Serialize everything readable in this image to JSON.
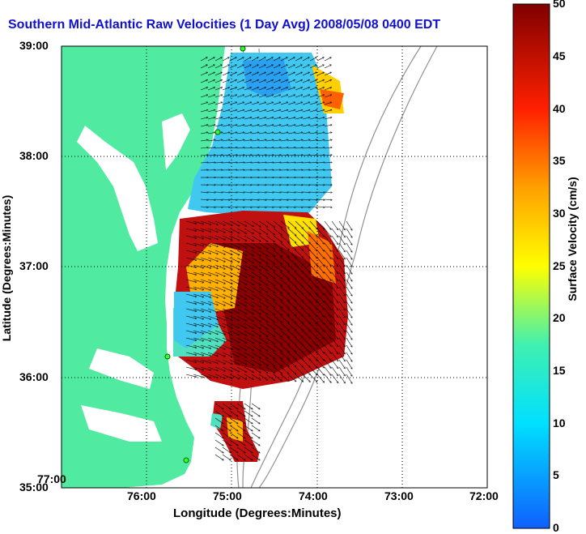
{
  "title": "Southern Mid-Atlantic Raw Velocities (1 Day Avg) 2008/05/08 0400 EDT",
  "xlabel": "Longitude (Degrees:Minutes)",
  "ylabel": "Latitude (Degrees:Minutes)",
  "colorbar": {
    "label": "Surface Velocity (cm/s)",
    "ticks": [
      "50",
      "45",
      "40",
      "35",
      "30",
      "25",
      "20",
      "15",
      "10",
      "5",
      "0"
    ],
    "range": [
      0,
      50
    ]
  },
  "x_ticks": [
    "77:00",
    "76:00",
    "75:00",
    "74:00",
    "73:00",
    "72:00"
  ],
  "y_ticks": [
    "39:00",
    "38:00",
    "37:00",
    "36:00",
    "35:00"
  ],
  "colors": {
    "land": "#50eba0",
    "title": "#1010d0",
    "bathymetry": "#909090"
  }
}
